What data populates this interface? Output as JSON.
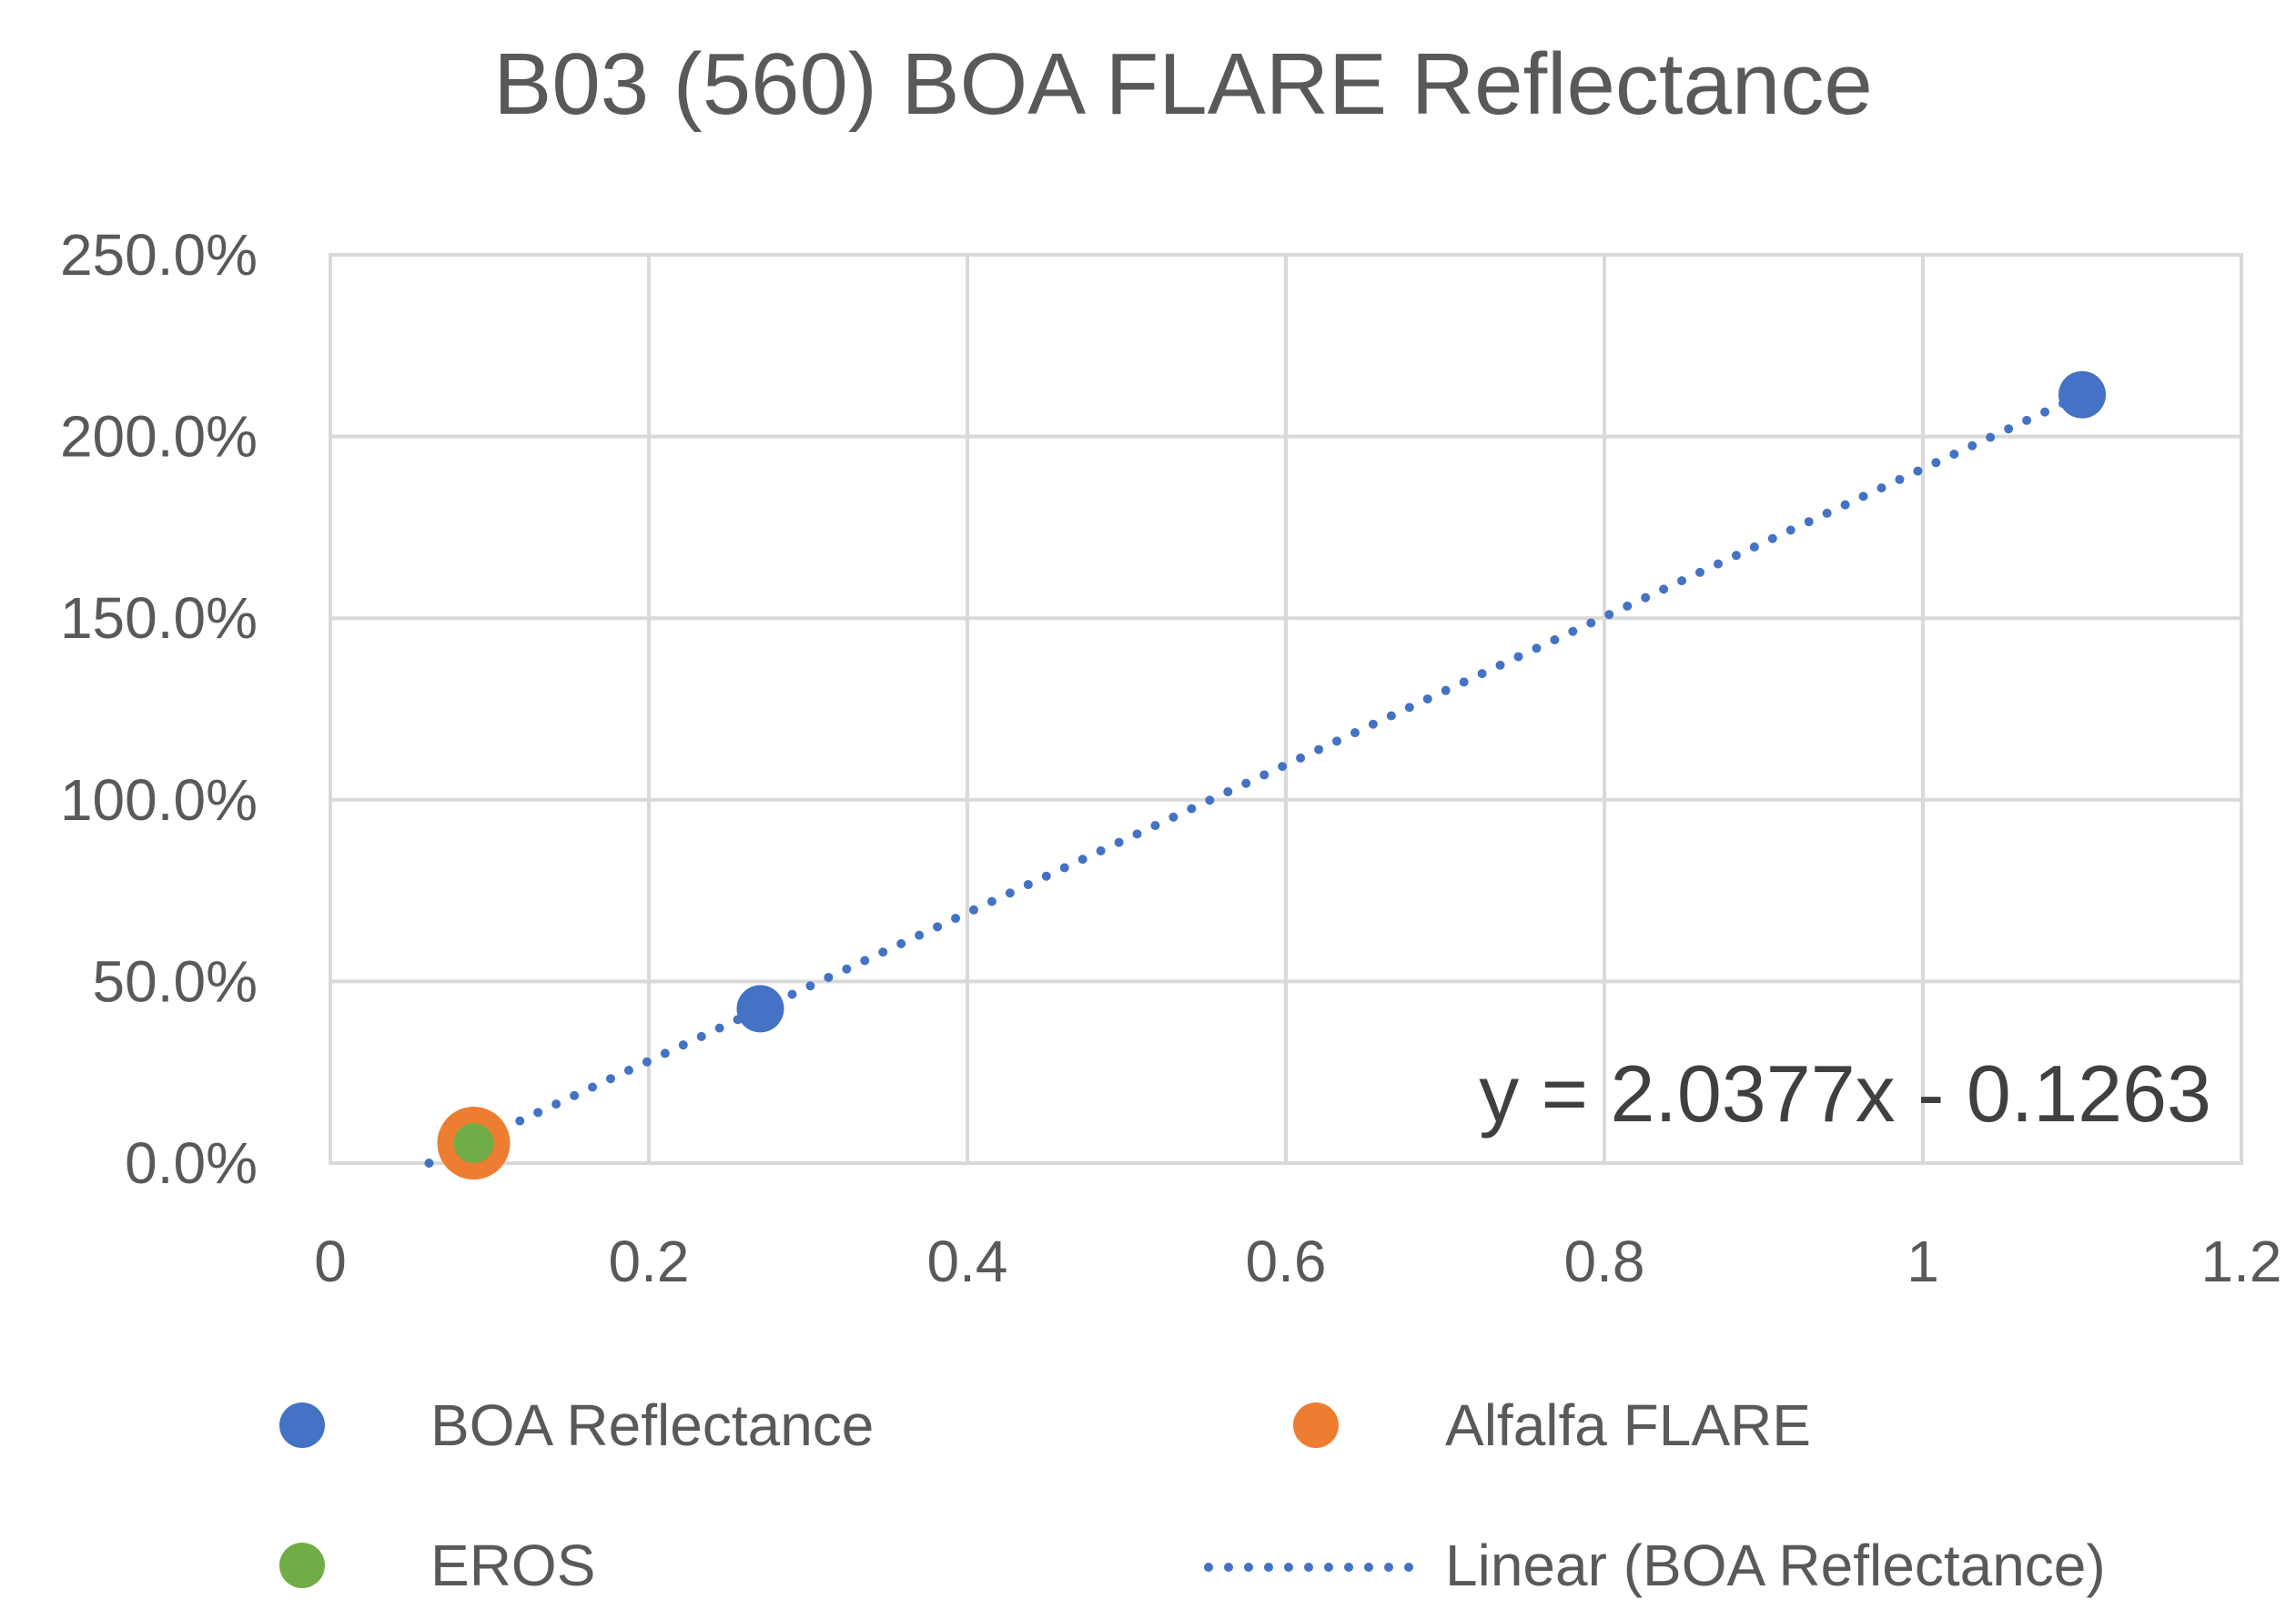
{
  "chart_data": {
    "type": "scatter",
    "title": "B03 (560) BOA FLARE Reflectance",
    "xlabel": "",
    "ylabel": "",
    "xlim": [
      0,
      1.2
    ],
    "ylim": [
      0,
      2.5
    ],
    "x_ticks": [
      0,
      0.2,
      0.4,
      0.6,
      0.8,
      1.0,
      1.2
    ],
    "x_tick_labels": [
      "0",
      "0.2",
      "0.4",
      "0.6",
      "0.8",
      "1",
      "1.2"
    ],
    "y_ticks": [
      0,
      0.5,
      1.0,
      1.5,
      2.0,
      2.5
    ],
    "y_tick_labels": [
      "0.0%",
      "50.0%",
      "100.0%",
      "150.0%",
      "200.0%",
      "250.0%"
    ],
    "grid": true,
    "legend_position": "bottom",
    "series": [
      {
        "name": "BOA Reflectance",
        "color": "#4472c4",
        "marker": "circle",
        "points": [
          {
            "x": 0.09,
            "y": 0.055
          },
          {
            "x": 0.27,
            "y": 0.425
          },
          {
            "x": 1.1,
            "y": 2.115
          }
        ]
      },
      {
        "name": "Alfalfa FLARE",
        "color": "#ed7d31",
        "marker": "circle-large",
        "points": [
          {
            "x": 0.09,
            "y": 0.055
          }
        ]
      },
      {
        "name": "EROS",
        "color": "#70ad47",
        "marker": "circle",
        "points": [
          {
            "x": 0.09,
            "y": 0.055
          }
        ]
      }
    ],
    "trendline": {
      "name": "Linear (BOA Reflectance)",
      "series": "BOA Reflectance",
      "slope": 2.0377,
      "intercept": -0.1263,
      "x_range": [
        0.062,
        1.1
      ],
      "color": "#4472c4",
      "style": "dotted",
      "equation_label": "y = 2.0377x - 0.1263"
    }
  }
}
